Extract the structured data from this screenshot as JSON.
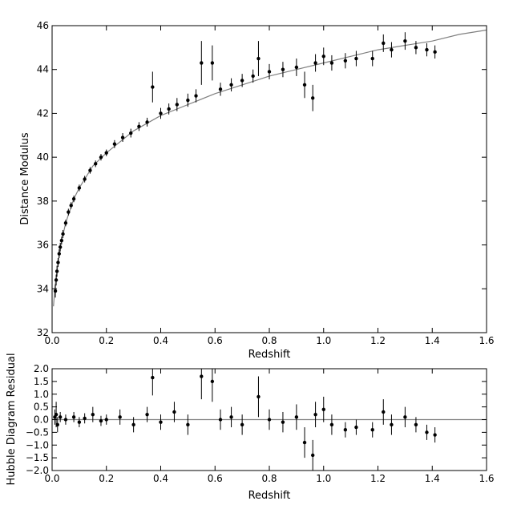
{
  "chart_data": [
    {
      "type": "scatter",
      "title": "",
      "xlabel": "Redshift",
      "ylabel": "Distance Modulus",
      "xlim": [
        0.0,
        1.6
      ],
      "ylim": [
        32,
        46
      ],
      "xticks": [
        "0.0",
        "0.2",
        "0.4",
        "0.6",
        "0.8",
        "1.0",
        "1.2",
        "1.4",
        "1.6"
      ],
      "yticks": [
        "32",
        "34",
        "36",
        "38",
        "40",
        "42",
        "44",
        "46"
      ],
      "grid": false,
      "series": [
        {
          "kind": "errorbar_points",
          "marker": "circle",
          "color": "#000000",
          "points": [
            {
              "x": 0.012,
              "y": 33.9,
              "err": 0.3
            },
            {
              "x": 0.015,
              "y": 34.4,
              "err": 0.25
            },
            {
              "x": 0.018,
              "y": 34.8,
              "err": 0.25
            },
            {
              "x": 0.022,
              "y": 35.2,
              "err": 0.2
            },
            {
              "x": 0.026,
              "y": 35.6,
              "err": 0.2
            },
            {
              "x": 0.03,
              "y": 35.9,
              "err": 0.2
            },
            {
              "x": 0.035,
              "y": 36.2,
              "err": 0.18
            },
            {
              "x": 0.04,
              "y": 36.5,
              "err": 0.18
            },
            {
              "x": 0.05,
              "y": 37.0,
              "err": 0.15
            },
            {
              "x": 0.06,
              "y": 37.5,
              "err": 0.15
            },
            {
              "x": 0.07,
              "y": 37.8,
              "err": 0.15
            },
            {
              "x": 0.08,
              "y": 38.1,
              "err": 0.15
            },
            {
              "x": 0.1,
              "y": 38.6,
              "err": 0.15
            },
            {
              "x": 0.12,
              "y": 39.0,
              "err": 0.15
            },
            {
              "x": 0.14,
              "y": 39.4,
              "err": 0.15
            },
            {
              "x": 0.16,
              "y": 39.7,
              "err": 0.15
            },
            {
              "x": 0.18,
              "y": 40.0,
              "err": 0.15
            },
            {
              "x": 0.2,
              "y": 40.2,
              "err": 0.15
            },
            {
              "x": 0.23,
              "y": 40.6,
              "err": 0.18
            },
            {
              "x": 0.26,
              "y": 40.9,
              "err": 0.2
            },
            {
              "x": 0.29,
              "y": 41.1,
              "err": 0.2
            },
            {
              "x": 0.32,
              "y": 41.4,
              "err": 0.2
            },
            {
              "x": 0.35,
              "y": 41.6,
              "err": 0.2
            },
            {
              "x": 0.37,
              "y": 43.2,
              "err": 0.7
            },
            {
              "x": 0.4,
              "y": 42.0,
              "err": 0.25
            },
            {
              "x": 0.43,
              "y": 42.2,
              "err": 0.25
            },
            {
              "x": 0.46,
              "y": 42.4,
              "err": 0.3
            },
            {
              "x": 0.5,
              "y": 42.6,
              "err": 0.3
            },
            {
              "x": 0.53,
              "y": 42.8,
              "err": 0.3
            },
            {
              "x": 0.55,
              "y": 44.3,
              "err": 1.0
            },
            {
              "x": 0.59,
              "y": 44.3,
              "err": 0.8
            },
            {
              "x": 0.62,
              "y": 43.1,
              "err": 0.3
            },
            {
              "x": 0.66,
              "y": 43.3,
              "err": 0.3
            },
            {
              "x": 0.7,
              "y": 43.5,
              "err": 0.3
            },
            {
              "x": 0.74,
              "y": 43.7,
              "err": 0.3
            },
            {
              "x": 0.76,
              "y": 44.5,
              "err": 0.8
            },
            {
              "x": 0.8,
              "y": 43.9,
              "err": 0.35
            },
            {
              "x": 0.85,
              "y": 44.0,
              "err": 0.35
            },
            {
              "x": 0.9,
              "y": 44.1,
              "err": 0.4
            },
            {
              "x": 0.93,
              "y": 43.3,
              "err": 0.6
            },
            {
              "x": 0.96,
              "y": 42.7,
              "err": 0.6
            },
            {
              "x": 0.97,
              "y": 44.3,
              "err": 0.4
            },
            {
              "x": 1.0,
              "y": 44.6,
              "err": 0.4
            },
            {
              "x": 1.03,
              "y": 44.3,
              "err": 0.35
            },
            {
              "x": 1.08,
              "y": 44.4,
              "err": 0.35
            },
            {
              "x": 1.12,
              "y": 44.5,
              "err": 0.35
            },
            {
              "x": 1.18,
              "y": 44.5,
              "err": 0.35
            },
            {
              "x": 1.22,
              "y": 45.2,
              "err": 0.4
            },
            {
              "x": 1.25,
              "y": 44.9,
              "err": 0.35
            },
            {
              "x": 1.3,
              "y": 45.3,
              "err": 0.4
            },
            {
              "x": 1.34,
              "y": 45.0,
              "err": 0.3
            },
            {
              "x": 1.38,
              "y": 44.9,
              "err": 0.3
            },
            {
              "x": 1.41,
              "y": 44.8,
              "err": 0.3
            }
          ]
        },
        {
          "kind": "model_curve",
          "color": "#808080",
          "x": [
            0.005,
            0.01,
            0.02,
            0.03,
            0.05,
            0.08,
            0.1,
            0.15,
            0.2,
            0.3,
            0.4,
            0.5,
            0.6,
            0.7,
            0.8,
            0.9,
            1.0,
            1.1,
            1.2,
            1.3,
            1.4,
            1.5,
            1.6
          ],
          "y": [
            33.2,
            34.0,
            35.0,
            35.9,
            37.0,
            38.1,
            38.6,
            39.6,
            40.2,
            41.2,
            41.9,
            42.4,
            42.9,
            43.3,
            43.7,
            44.0,
            44.3,
            44.6,
            44.9,
            45.1,
            45.3,
            45.6,
            45.8
          ]
        }
      ]
    },
    {
      "type": "scatter",
      "title": "",
      "xlabel": "Redshift",
      "ylabel": "Hubble Diagram Residual",
      "xlim": [
        0.0,
        1.6
      ],
      "ylim": [
        -2.0,
        2.0
      ],
      "xticks": [
        "0.0",
        "0.2",
        "0.4",
        "0.6",
        "0.8",
        "1.0",
        "1.2",
        "1.4",
        "1.6"
      ],
      "yticks": [
        "2.0",
        "1.5",
        "1.0",
        "0.5",
        "0.0",
        "−0.5",
        "−1.0",
        "−1.5",
        "−2.0"
      ],
      "grid": false,
      "series": [
        {
          "kind": "errorbar_points",
          "marker": "circle",
          "color": "#000000",
          "points": [
            {
              "x": 0.01,
              "y": 0.1,
              "err": 0.3
            },
            {
              "x": 0.015,
              "y": 0.2,
              "err": 0.5
            },
            {
              "x": 0.02,
              "y": -0.2,
              "err": 0.3
            },
            {
              "x": 0.03,
              "y": 0.1,
              "err": 0.2
            },
            {
              "x": 0.05,
              "y": 0.0,
              "err": 0.2
            },
            {
              "x": 0.08,
              "y": 0.1,
              "err": 0.2
            },
            {
              "x": 0.1,
              "y": -0.1,
              "err": 0.2
            },
            {
              "x": 0.12,
              "y": 0.05,
              "err": 0.2
            },
            {
              "x": 0.15,
              "y": 0.2,
              "err": 0.3
            },
            {
              "x": 0.18,
              "y": -0.05,
              "err": 0.2
            },
            {
              "x": 0.2,
              "y": 0.0,
              "err": 0.2
            },
            {
              "x": 0.25,
              "y": 0.1,
              "err": 0.3
            },
            {
              "x": 0.3,
              "y": -0.2,
              "err": 0.3
            },
            {
              "x": 0.35,
              "y": 0.2,
              "err": 0.3
            },
            {
              "x": 0.37,
              "y": 1.65,
              "err": 0.7
            },
            {
              "x": 0.4,
              "y": -0.1,
              "err": 0.3
            },
            {
              "x": 0.45,
              "y": 0.3,
              "err": 0.4
            },
            {
              "x": 0.5,
              "y": -0.2,
              "err": 0.4
            },
            {
              "x": 0.55,
              "y": 1.7,
              "err": 0.9
            },
            {
              "x": 0.59,
              "y": 1.5,
              "err": 0.8
            },
            {
              "x": 0.62,
              "y": 0.0,
              "err": 0.4
            },
            {
              "x": 0.66,
              "y": 0.1,
              "err": 0.4
            },
            {
              "x": 0.7,
              "y": -0.2,
              "err": 0.4
            },
            {
              "x": 0.76,
              "y": 0.9,
              "err": 0.8
            },
            {
              "x": 0.8,
              "y": 0.0,
              "err": 0.4
            },
            {
              "x": 0.85,
              "y": -0.1,
              "err": 0.4
            },
            {
              "x": 0.9,
              "y": 0.1,
              "err": 0.5
            },
            {
              "x": 0.93,
              "y": -0.9,
              "err": 0.6
            },
            {
              "x": 0.96,
              "y": -1.4,
              "err": 0.6
            },
            {
              "x": 0.97,
              "y": 0.2,
              "err": 0.5
            },
            {
              "x": 1.0,
              "y": 0.4,
              "err": 0.5
            },
            {
              "x": 1.03,
              "y": -0.2,
              "err": 0.4
            },
            {
              "x": 1.08,
              "y": -0.4,
              "err": 0.3
            },
            {
              "x": 1.12,
              "y": -0.3,
              "err": 0.3
            },
            {
              "x": 1.18,
              "y": -0.4,
              "err": 0.3
            },
            {
              "x": 1.22,
              "y": 0.3,
              "err": 0.5
            },
            {
              "x": 1.25,
              "y": -0.2,
              "err": 0.4
            },
            {
              "x": 1.3,
              "y": 0.1,
              "err": 0.4
            },
            {
              "x": 1.34,
              "y": -0.2,
              "err": 0.3
            },
            {
              "x": 1.38,
              "y": -0.5,
              "err": 0.3
            },
            {
              "x": 1.41,
              "y": -0.6,
              "err": 0.3
            }
          ]
        },
        {
          "kind": "reference_line",
          "color": "#808080",
          "x": [
            0.0,
            1.6
          ],
          "y": [
            0.0,
            0.0
          ]
        }
      ]
    }
  ]
}
